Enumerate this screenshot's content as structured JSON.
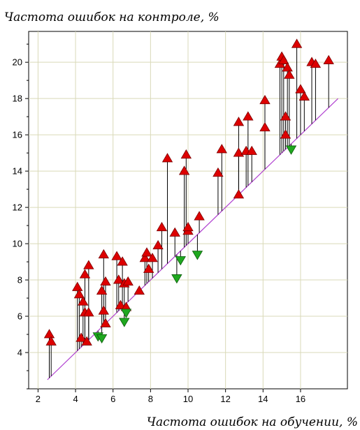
{
  "chart_data": {
    "type": "scatter",
    "title": "Частота ошибок на контроле, %",
    "xlabel": "Частота ошибок на обучении, %",
    "ylabel": "Частота ошибок на контроле, %",
    "xlim": [
      1.5,
      18.5
    ],
    "ylim": [
      2,
      21.7
    ],
    "x_ticks": [
      2,
      4,
      6,
      8,
      10,
      12,
      14,
      16
    ],
    "y_ticks": [
      4,
      6,
      8,
      10,
      12,
      14,
      16,
      18,
      20
    ],
    "grid": true,
    "reference_line": {
      "from": [
        2.5,
        2.5
      ],
      "to": [
        18,
        18
      ],
      "color": "#b040d0"
    },
    "colors": {
      "up": "#dd0000",
      "down": "#1fa81f",
      "grid": "#d9d9b8",
      "stem": "#000000"
    },
    "up_points": [
      [
        2.6,
        5.0
      ],
      [
        2.7,
        4.6
      ],
      [
        4.1,
        7.6
      ],
      [
        4.2,
        7.2
      ],
      [
        4.3,
        4.8
      ],
      [
        4.4,
        6.8
      ],
      [
        4.5,
        6.2
      ],
      [
        4.5,
        8.3
      ],
      [
        4.6,
        4.6
      ],
      [
        4.7,
        8.8
      ],
      [
        4.7,
        6.2
      ],
      [
        5.4,
        7.4
      ],
      [
        5.5,
        9.4
      ],
      [
        5.5,
        6.3
      ],
      [
        5.6,
        7.9
      ],
      [
        5.6,
        5.6
      ],
      [
        6.2,
        9.3
      ],
      [
        6.3,
        8.0
      ],
      [
        6.4,
        6.6
      ],
      [
        6.5,
        9.0
      ],
      [
        6.6,
        7.8
      ],
      [
        6.7,
        6.5
      ],
      [
        6.8,
        7.9
      ],
      [
        7.4,
        7.4
      ],
      [
        7.7,
        9.2
      ],
      [
        7.8,
        9.5
      ],
      [
        7.9,
        8.6
      ],
      [
        8.1,
        9.2
      ],
      [
        8.4,
        9.9
      ],
      [
        8.6,
        10.9
      ],
      [
        8.9,
        14.7
      ],
      [
        9.3,
        10.6
      ],
      [
        9.8,
        14.0
      ],
      [
        9.9,
        14.9
      ],
      [
        10.0,
        10.7
      ],
      [
        10.0,
        10.9
      ],
      [
        10.6,
        11.5
      ],
      [
        11.6,
        13.9
      ],
      [
        11.8,
        15.2
      ],
      [
        12.7,
        12.7
      ],
      [
        12.7,
        16.7
      ],
      [
        12.7,
        15.0
      ],
      [
        13.1,
        15.1
      ],
      [
        13.2,
        17.0
      ],
      [
        13.4,
        15.1
      ],
      [
        14.1,
        17.9
      ],
      [
        14.1,
        16.4
      ],
      [
        14.9,
        19.9
      ],
      [
        15.0,
        20.3
      ],
      [
        15.1,
        20.1
      ],
      [
        15.2,
        17.0
      ],
      [
        15.2,
        16.0
      ],
      [
        15.3,
        19.7
      ],
      [
        15.4,
        19.3
      ],
      [
        15.8,
        21.0
      ],
      [
        16.0,
        18.5
      ],
      [
        16.2,
        18.1
      ],
      [
        16.6,
        20.0
      ],
      [
        16.8,
        19.9
      ],
      [
        17.5,
        20.1
      ]
    ],
    "down_points": [
      [
        5.2,
        4.9
      ],
      [
        5.4,
        4.8
      ],
      [
        6.6,
        5.7
      ],
      [
        6.7,
        6.2
      ],
      [
        9.4,
        8.1
      ],
      [
        9.6,
        9.1
      ],
      [
        10.5,
        9.4
      ],
      [
        15.5,
        15.2
      ]
    ]
  }
}
